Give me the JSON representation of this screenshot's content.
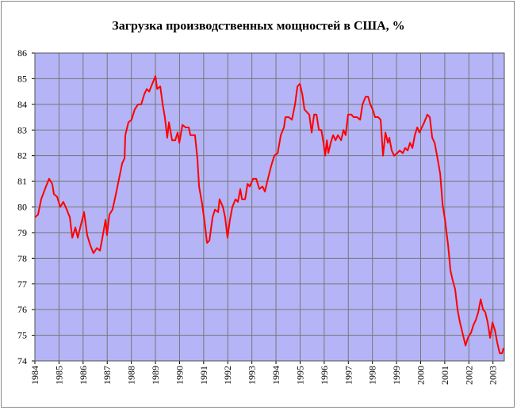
{
  "chart_data": {
    "type": "line",
    "title": "Загрузка производственных мощностей в США, %",
    "x": [
      1984.0,
      1984.13,
      1984.26,
      1984.46,
      1984.59,
      1984.72,
      1984.79,
      1984.92,
      1985.05,
      1985.18,
      1985.32,
      1985.45,
      1985.55,
      1985.68,
      1985.78,
      1985.88,
      1986.04,
      1986.17,
      1986.3,
      1986.43,
      1986.57,
      1986.7,
      1986.8,
      1986.93,
      1986.99,
      1987.09,
      1987.22,
      1987.36,
      1987.49,
      1987.62,
      1987.72,
      1987.75,
      1987.88,
      1988.01,
      1988.14,
      1988.28,
      1988.41,
      1988.54,
      1988.64,
      1988.74,
      1988.87,
      1989.0,
      1989.07,
      1989.2,
      1989.3,
      1989.39,
      1989.49,
      1989.56,
      1989.69,
      1989.82,
      1989.92,
      1989.99,
      1990.12,
      1990.25,
      1990.38,
      1990.45,
      1990.64,
      1990.74,
      1990.81,
      1990.94,
      1991.04,
      1991.14,
      1991.24,
      1991.37,
      1991.47,
      1991.6,
      1991.66,
      1991.8,
      1991.89,
      1991.99,
      1992.09,
      1992.19,
      1992.32,
      1992.42,
      1992.52,
      1992.59,
      1992.72,
      1992.82,
      1992.91,
      1993.05,
      1993.18,
      1993.31,
      1993.44,
      1993.54,
      1993.64,
      1993.8,
      1993.93,
      1994.07,
      1994.2,
      1994.33,
      1994.39,
      1994.53,
      1994.66,
      1994.79,
      1994.89,
      1994.99,
      1995.09,
      1995.18,
      1995.28,
      1995.38,
      1995.48,
      1995.58,
      1995.68,
      1995.78,
      1995.88,
      1995.97,
      1996.04,
      1996.11,
      1996.17,
      1996.27,
      1996.37,
      1996.47,
      1996.57,
      1996.7,
      1996.8,
      1996.89,
      1996.99,
      1997.13,
      1997.22,
      1997.36,
      1997.49,
      1997.59,
      1997.72,
      1997.82,
      1997.91,
      1998.01,
      1998.11,
      1998.24,
      1998.34,
      1998.44,
      1998.54,
      1998.64,
      1998.7,
      1998.8,
      1998.9,
      1999.03,
      1999.13,
      1999.26,
      1999.36,
      1999.46,
      1999.56,
      1999.66,
      1999.76,
      1999.86,
      1999.95,
      2000.05,
      2000.15,
      2000.28,
      2000.38,
      2000.48,
      2000.58,
      2000.68,
      2000.81,
      2000.91,
      2001.01,
      2001.14,
      2001.24,
      2001.34,
      2001.43,
      2001.53,
      2001.63,
      2001.76,
      2001.86,
      2001.96,
      2002.09,
      2002.19,
      2002.29,
      2002.39,
      2002.49,
      2002.59,
      2002.68,
      2002.78,
      2002.88,
      2002.98,
      2003.08,
      2003.18,
      2003.28,
      2003.38,
      2003.44
    ],
    "series": [
      {
        "color": "#ff0000",
        "values": [
          79.6,
          79.7,
          80.3,
          80.8,
          81.1,
          80.9,
          80.5,
          80.4,
          80.0,
          80.2,
          79.9,
          79.6,
          78.8,
          79.2,
          78.8,
          79.2,
          79.8,
          78.9,
          78.5,
          78.2,
          78.4,
          78.3,
          78.8,
          79.5,
          78.9,
          79.7,
          79.9,
          80.5,
          81.1,
          81.7,
          81.9,
          82.8,
          83.3,
          83.4,
          83.8,
          84.0,
          84.0,
          84.4,
          84.6,
          84.5,
          84.8,
          85.1,
          84.6,
          84.7,
          84.0,
          83.5,
          82.7,
          83.3,
          82.6,
          82.6,
          82.9,
          82.5,
          83.2,
          83.1,
          83.1,
          82.8,
          82.8,
          81.9,
          80.8,
          80.1,
          79.4,
          78.6,
          78.7,
          79.6,
          79.9,
          79.8,
          80.3,
          80.0,
          79.6,
          78.8,
          79.5,
          80.0,
          80.3,
          80.2,
          80.7,
          80.3,
          80.3,
          80.9,
          80.8,
          81.1,
          81.1,
          80.7,
          80.8,
          80.6,
          81.0,
          81.6,
          82.0,
          82.1,
          82.8,
          83.1,
          83.5,
          83.5,
          83.4,
          84.0,
          84.7,
          84.8,
          84.4,
          83.8,
          83.7,
          83.6,
          82.9,
          83.6,
          83.6,
          83.0,
          83.0,
          82.5,
          82.0,
          82.6,
          82.1,
          82.5,
          82.8,
          82.6,
          82.8,
          82.6,
          83.0,
          82.8,
          83.6,
          83.6,
          83.5,
          83.5,
          83.4,
          84.0,
          84.3,
          84.3,
          84.0,
          83.8,
          83.5,
          83.5,
          83.4,
          82.0,
          82.9,
          82.5,
          82.7,
          82.2,
          82.0,
          82.1,
          82.2,
          82.1,
          82.3,
          82.2,
          82.5,
          82.3,
          82.8,
          83.1,
          82.9,
          83.1,
          83.3,
          83.6,
          83.5,
          82.7,
          82.5,
          82.0,
          81.3,
          80.1,
          79.5,
          78.5,
          77.5,
          77.1,
          76.8,
          76.0,
          75.5,
          75.0,
          74.6,
          74.9,
          75.1,
          75.4,
          75.6,
          75.9,
          76.4,
          76.0,
          75.9,
          75.5,
          74.9,
          75.5,
          75.2,
          74.7,
          74.3,
          74.3,
          74.5
        ]
      }
    ],
    "xlim": [
      1984,
      2003.47
    ],
    "xticks": [
      1984,
      1985,
      1986,
      1987,
      1988,
      1989,
      1990,
      1991,
      1992,
      1993,
      1994,
      1995,
      1996,
      1997,
      1998,
      1999,
      2000,
      2001,
      2002,
      2003
    ],
    "ylim": [
      74,
      86
    ],
    "yticks": [
      74,
      75,
      76,
      77,
      78,
      79,
      80,
      81,
      82,
      83,
      84,
      85,
      86
    ],
    "grid": true,
    "plot_background": "#b4b4f6"
  }
}
